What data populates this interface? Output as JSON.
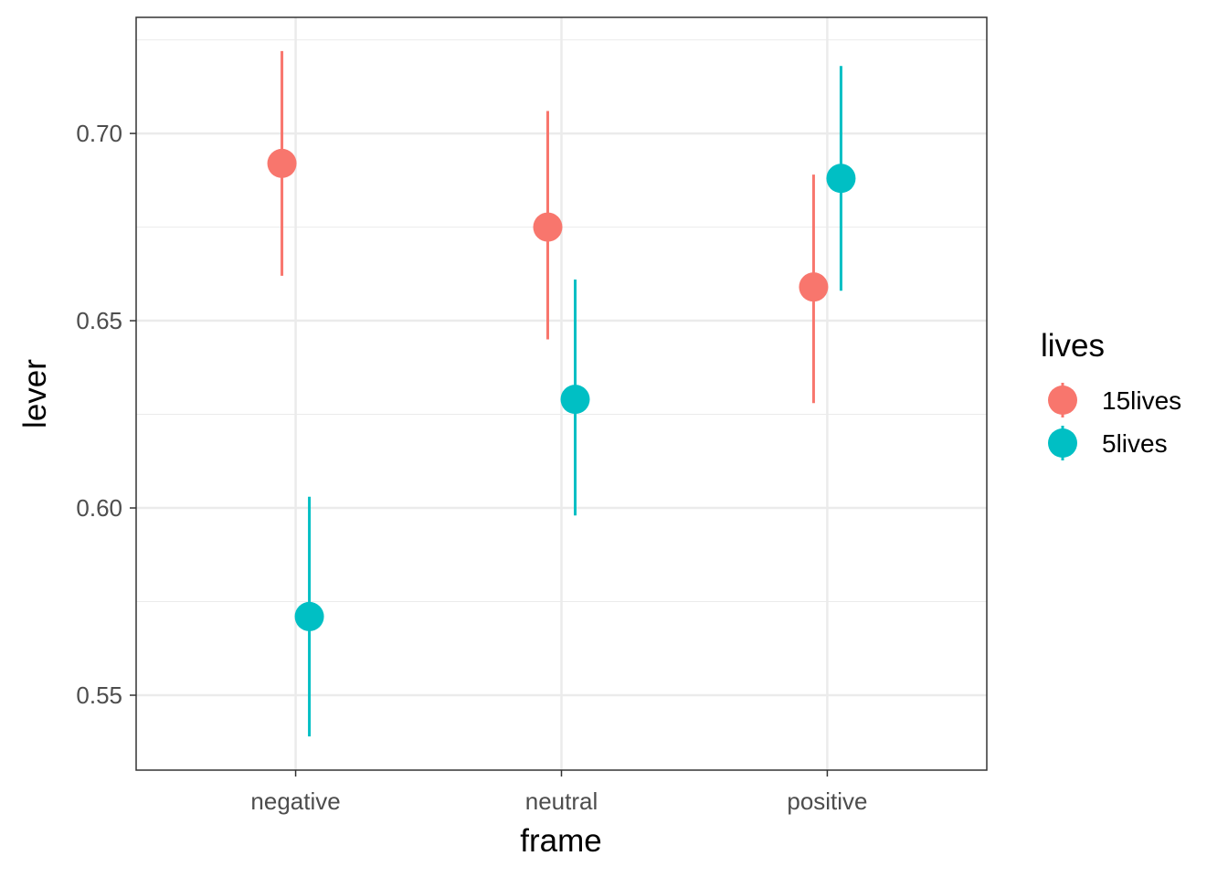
{
  "chart_data": {
    "type": "scatter",
    "title": "",
    "xlabel": "frame",
    "ylabel": "lever",
    "categories": [
      "negative",
      "neutral",
      "positive"
    ],
    "ylim": [
      0.53,
      0.731
    ],
    "yticks": [
      "0.55",
      "0.60",
      "0.65",
      "0.70"
    ],
    "grid": true,
    "legend": {
      "title": "lives",
      "position": "right"
    },
    "series": [
      {
        "name": "15lives",
        "color": "#F8766D",
        "points": [
          {
            "x": "negative",
            "y": 0.692,
            "ymin": 0.662,
            "ymax": 0.722
          },
          {
            "x": "neutral",
            "y": 0.675,
            "ymin": 0.645,
            "ymax": 0.706
          },
          {
            "x": "positive",
            "y": 0.659,
            "ymin": 0.628,
            "ymax": 0.689
          }
        ]
      },
      {
        "name": "5lives",
        "color": "#00BFC4",
        "points": [
          {
            "x": "negative",
            "y": 0.571,
            "ymin": 0.539,
            "ymax": 0.603
          },
          {
            "x": "neutral",
            "y": 0.629,
            "ymin": 0.598,
            "ymax": 0.661
          },
          {
            "x": "positive",
            "y": 0.688,
            "ymin": 0.658,
            "ymax": 0.718
          }
        ]
      }
    ]
  }
}
